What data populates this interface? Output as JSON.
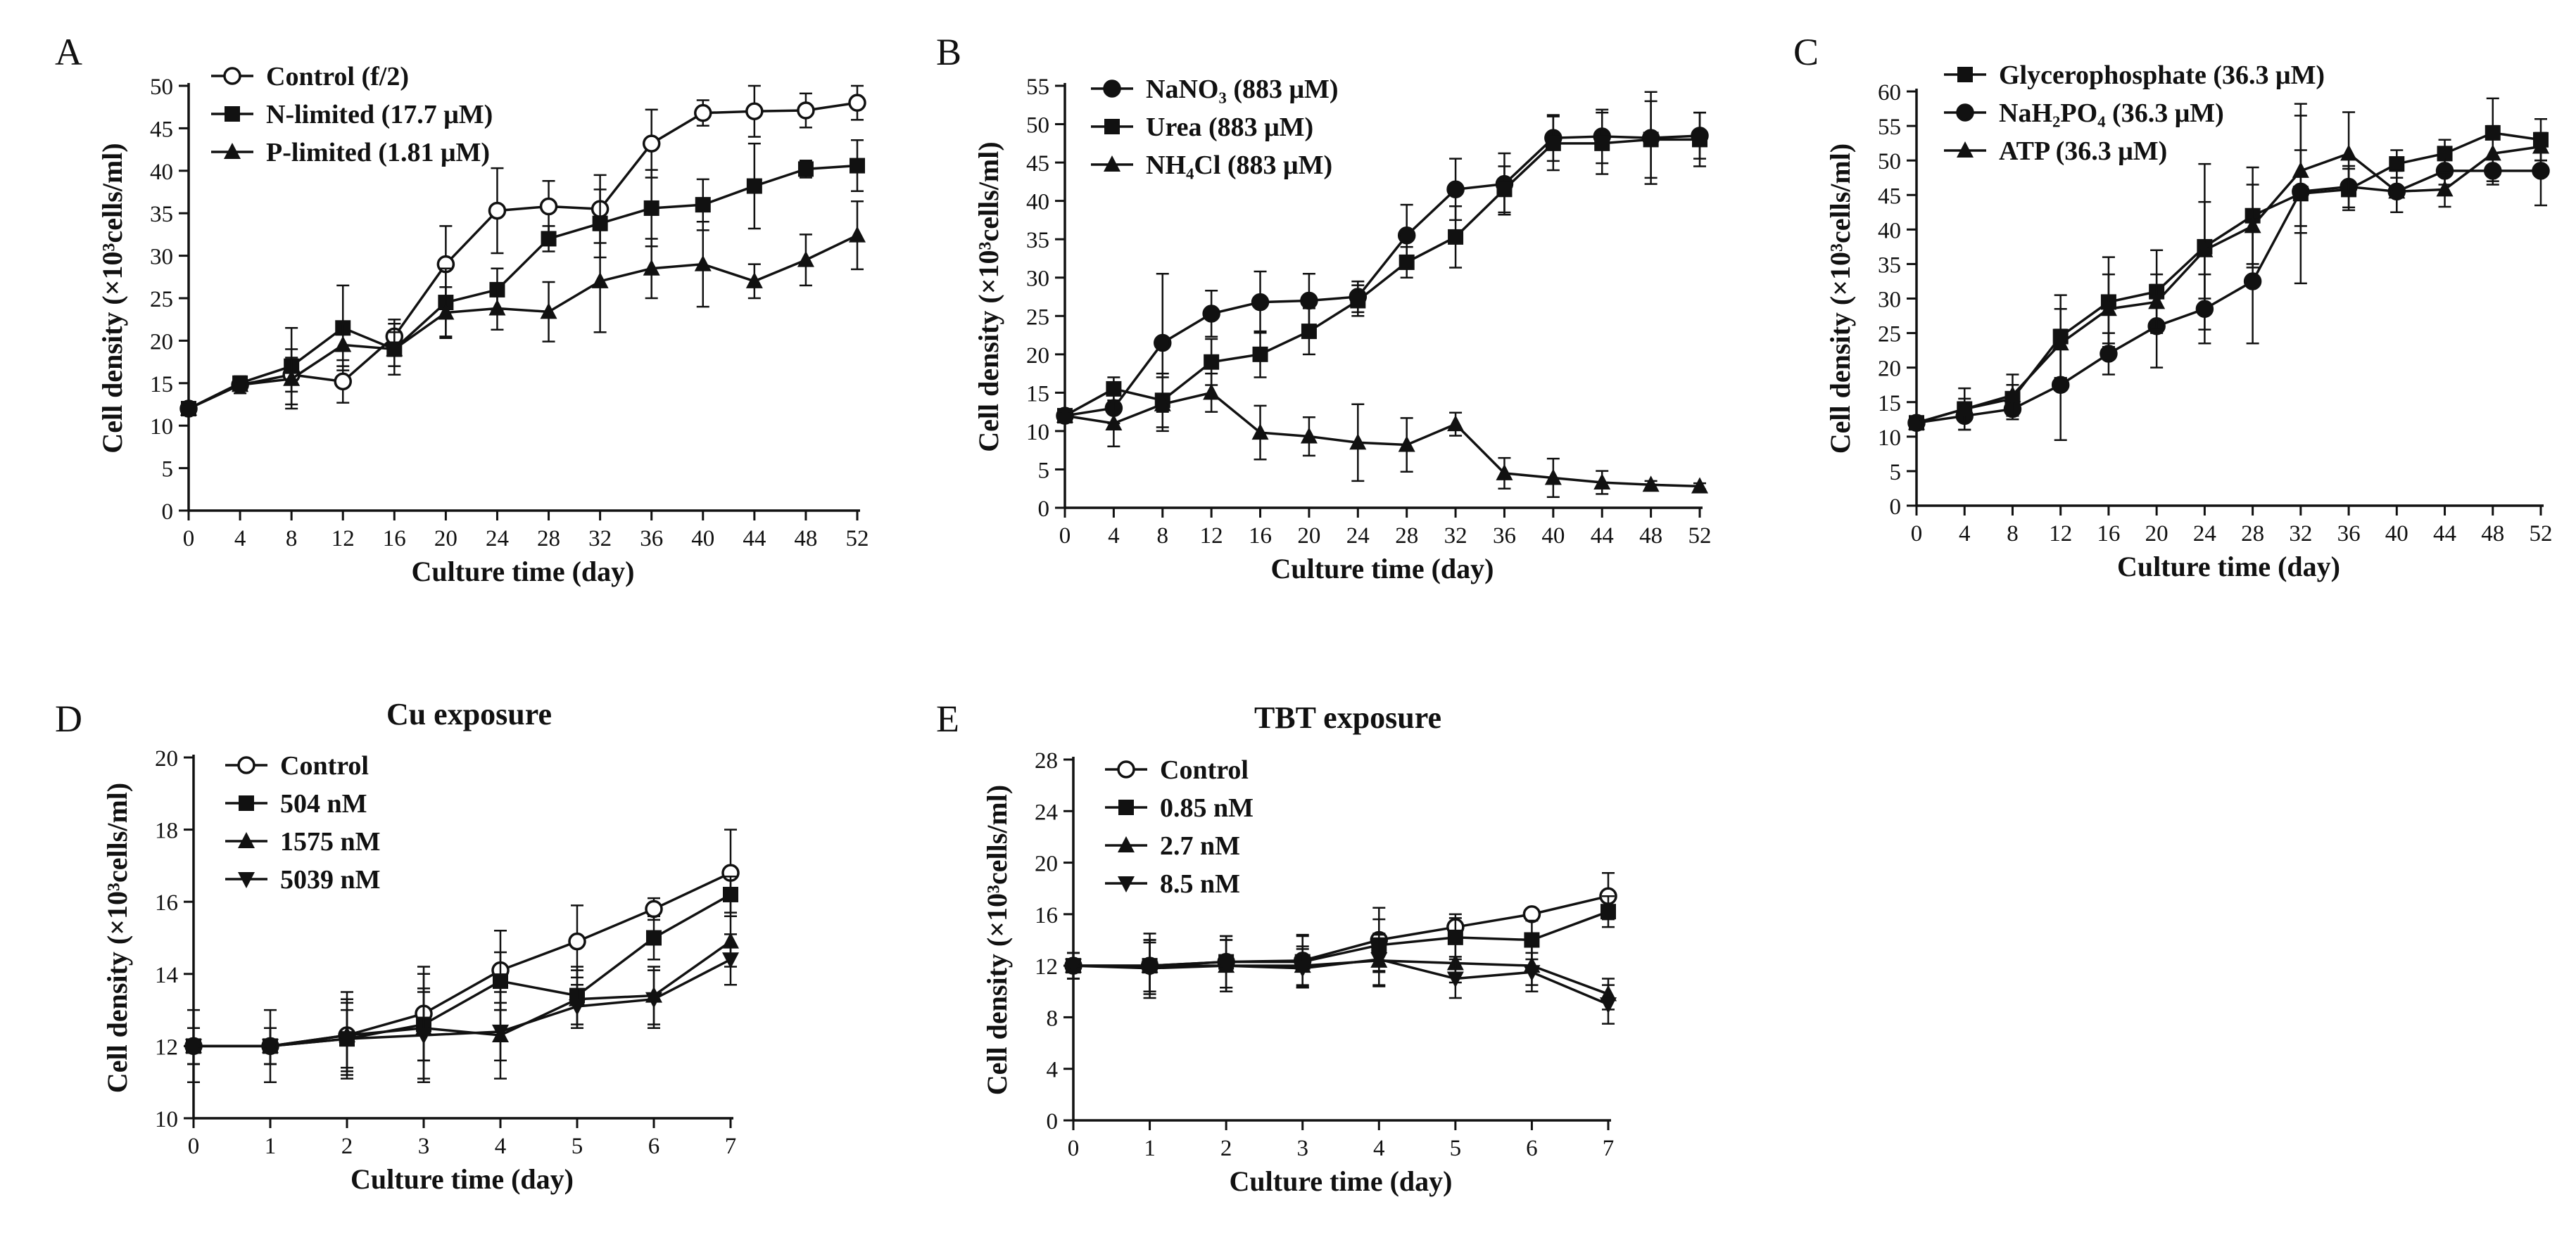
{
  "chart_data": [
    {
      "panel_label": "A",
      "type": "line",
      "title": "",
      "xlabel": "Culture time (day)",
      "ylabel": "Cell density (×10³cells/ml)",
      "xlim": [
        0,
        52
      ],
      "ylim": [
        0,
        50
      ],
      "x_ticks": [
        0,
        4,
        8,
        12,
        16,
        20,
        24,
        28,
        32,
        36,
        40,
        44,
        48,
        52
      ],
      "y_ticks": [
        0,
        5,
        10,
        15,
        20,
        25,
        30,
        35,
        40,
        45,
        50
      ],
      "x": [
        0,
        4,
        8,
        12,
        16,
        20,
        24,
        28,
        32,
        36,
        40,
        44,
        48,
        52
      ],
      "legend_position": "top-left",
      "series": [
        {
          "name": "Control (f/2)",
          "marker": "circle-open",
          "values": [
            12,
            14.8,
            16,
            15.2,
            20.5,
            29,
            35.3,
            35.8,
            35.5,
            43.2,
            46.8,
            47,
            47.1,
            48
          ],
          "errors": [
            0.5,
            1,
            2,
            2.5,
            2,
            4.5,
            5,
            3,
            4,
            4,
            1.5,
            3,
            2,
            2
          ]
        },
        {
          "name": "N-limited (17.7 μM)",
          "marker": "square",
          "values": [
            12,
            15,
            17,
            21.5,
            19,
            24.5,
            26,
            32,
            33.8,
            35.6,
            36,
            38.2,
            40.2,
            40.6
          ],
          "errors": [
            0.5,
            0.8,
            4.5,
            5,
            3,
            4,
            2.5,
            1.5,
            4,
            4.5,
            3,
            5,
            1,
            3
          ]
        },
        {
          "name": "P-limited (1.81 μM)",
          "marker": "triangle",
          "values": [
            12,
            14.8,
            15.5,
            19.5,
            19,
            23.3,
            23.8,
            23.4,
            27,
            28.5,
            29,
            27,
            29.5,
            32.4
          ],
          "errors": [
            0.5,
            1,
            3.5,
            2.5,
            2,
            3,
            2.5,
            3.5,
            6,
            3.5,
            5,
            2,
            3,
            4
          ]
        }
      ]
    },
    {
      "panel_label": "B",
      "type": "line",
      "title": "",
      "xlabel": "Culture time (day)",
      "ylabel": "Cell density (×10³cells/ml)",
      "xlim": [
        0,
        52
      ],
      "ylim": [
        0,
        55
      ],
      "x_ticks": [
        0,
        4,
        8,
        12,
        16,
        20,
        24,
        28,
        32,
        36,
        40,
        44,
        48,
        52
      ],
      "y_ticks": [
        0,
        5,
        10,
        15,
        20,
        25,
        30,
        35,
        40,
        45,
        50,
        55
      ],
      "x": [
        0,
        4,
        8,
        12,
        16,
        20,
        24,
        28,
        32,
        36,
        40,
        44,
        48,
        52
      ],
      "legend_position": "top-left",
      "series": [
        {
          "name": "NaNO₃ (883 μM)",
          "marker": "circle",
          "values": [
            12,
            13,
            21.5,
            25.3,
            26.8,
            27,
            27.5,
            35.5,
            41.5,
            42.2,
            48.2,
            48.4,
            48.2,
            48.5
          ],
          "errors": [
            0.5,
            2,
            9,
            3,
            4,
            3.5,
            2,
            4,
            4,
            4,
            3,
            3.5,
            6,
            3
          ]
        },
        {
          "name": "Urea (883 μM)",
          "marker": "square",
          "values": [
            12,
            15.5,
            14,
            19,
            20,
            23,
            27,
            32,
            35.3,
            41.5,
            47.5,
            47.5,
            48,
            48
          ],
          "errors": [
            0.5,
            1.5,
            3.5,
            3,
            3,
            3,
            2,
            2,
            4,
            3,
            3.5,
            4,
            5,
            3.5
          ]
        },
        {
          "name": "NH₄Cl (883 μM)",
          "marker": "triangle",
          "values": [
            12,
            11,
            13.5,
            15,
            9.8,
            9.3,
            8.5,
            8.2,
            10.9,
            4.5,
            3.9,
            3.3,
            3,
            2.8
          ],
          "errors": [
            0.5,
            3,
            3.5,
            2.5,
            3.5,
            2.5,
            5,
            3.5,
            1.5,
            2,
            2.5,
            1.5,
            0.5,
            0.4
          ]
        }
      ]
    },
    {
      "panel_label": "C",
      "type": "line",
      "title": "",
      "xlabel": "Culture time (day)",
      "ylabel": "Cell density (×10³cells/ml)",
      "xlim": [
        0,
        52
      ],
      "ylim": [
        0,
        60
      ],
      "x_ticks": [
        0,
        4,
        8,
        12,
        16,
        20,
        24,
        28,
        32,
        36,
        40,
        44,
        48,
        52
      ],
      "y_ticks": [
        0,
        5,
        10,
        15,
        20,
        25,
        30,
        35,
        40,
        45,
        50,
        55,
        60
      ],
      "x": [
        0,
        4,
        8,
        12,
        16,
        20,
        24,
        28,
        32,
        36,
        40,
        44,
        48,
        52
      ],
      "legend_position": "top-left",
      "series": [
        {
          "name": "Glycerophosphate (36.3 μM)",
          "marker": "square",
          "values": [
            12,
            14,
            15.5,
            24.5,
            29.5,
            31,
            37.5,
            42,
            45.2,
            45.8,
            49.5,
            51,
            54,
            53
          ],
          "errors": [
            0.5,
            1.5,
            2,
            6,
            6.5,
            6,
            12,
            7,
            13,
            3,
            2,
            2,
            5,
            3
          ]
        },
        {
          "name": "NaH₂PO₄ (36.3 μM)",
          "marker": "circle",
          "values": [
            12,
            13,
            14,
            17.5,
            22,
            26,
            28.5,
            32.5,
            45.5,
            46.2,
            45.5,
            48.5,
            48.5,
            48.5
          ],
          "errors": [
            0.5,
            2,
            1.5,
            8,
            3,
            6,
            5,
            9,
            6,
            3,
            3,
            2,
            2,
            5
          ]
        },
        {
          "name": "ATP (36.3 μM)",
          "marker": "triangle",
          "values": [
            12,
            14,
            16,
            23.5,
            28.5,
            29.5,
            37,
            40.5,
            48.5,
            51,
            45.5,
            45.8,
            51,
            52
          ],
          "errors": [
            0.5,
            3,
            3,
            5,
            5,
            4,
            7,
            6,
            8,
            6,
            3,
            2.5,
            4,
            2
          ]
        }
      ]
    },
    {
      "panel_label": "D",
      "type": "line",
      "title": "Cu exposure",
      "xlabel": "Culture time (day)",
      "ylabel": "Cell density (×10³cells/ml)",
      "xlim": [
        0,
        7
      ],
      "ylim": [
        10,
        20
      ],
      "x_ticks": [
        0,
        1,
        2,
        3,
        4,
        5,
        6,
        7
      ],
      "y_ticks": [
        10,
        12,
        14,
        16,
        18,
        20
      ],
      "x": [
        0,
        1,
        2,
        3,
        4,
        5,
        6,
        7
      ],
      "legend_position": "top-left",
      "series": [
        {
          "name": "Control",
          "marker": "circle-open",
          "values": [
            12,
            12,
            12.3,
            12.9,
            14.1,
            14.9,
            15.8,
            16.8
          ],
          "errors": [
            1,
            1,
            1,
            1.3,
            1.1,
            1,
            0.3,
            1.2
          ]
        },
        {
          "name": "504 nM",
          "marker": "square",
          "values": [
            12,
            12,
            12.2,
            12.6,
            13.8,
            13.4,
            15,
            16.2
          ],
          "errors": [
            0.5,
            0.5,
            1,
            1,
            0.8,
            0.8,
            0.6,
            0.5
          ]
        },
        {
          "name": "1575 nM",
          "marker": "triangle",
          "values": [
            12,
            12,
            12.3,
            12.5,
            12.3,
            13.3,
            13.4,
            14.9
          ],
          "errors": [
            0.5,
            0.5,
            1.2,
            1.5,
            1.2,
            0.8,
            0.8,
            0.7
          ]
        },
        {
          "name": "5039 nM",
          "marker": "triangle-down",
          "values": [
            12,
            12,
            12.2,
            12.3,
            12.4,
            13.1,
            13.3,
            14.4
          ],
          "errors": [
            0.5,
            0.5,
            0.8,
            1.2,
            0.8,
            0.6,
            0.8,
            0.7
          ]
        }
      ]
    },
    {
      "panel_label": "E",
      "type": "line",
      "title": "TBT exposure",
      "xlabel": "Culture time (day)",
      "ylabel": "Cell density (×10³cells/ml)",
      "xlim": [
        0,
        7
      ],
      "ylim": [
        0,
        28
      ],
      "x_ticks": [
        0,
        1,
        2,
        3,
        4,
        5,
        6,
        7
      ],
      "y_ticks": [
        0,
        4,
        8,
        12,
        16,
        20,
        24,
        28
      ],
      "x": [
        0,
        1,
        2,
        3,
        4,
        5,
        6,
        7
      ],
      "legend_position": "top-left",
      "series": [
        {
          "name": "Control",
          "marker": "circle-open",
          "values": [
            12,
            12,
            12.3,
            12.4,
            14,
            15,
            16,
            17.4
          ],
          "errors": [
            1,
            2.5,
            2,
            2,
            2.5,
            1,
            0.3,
            1.8
          ]
        },
        {
          "name": "0.85 nM",
          "marker": "square",
          "values": [
            12,
            12,
            12.3,
            12.3,
            13.6,
            14.2,
            14,
            16.2
          ],
          "errors": [
            1,
            2,
            2,
            2,
            2,
            1.5,
            1.5,
            1.2
          ]
        },
        {
          "name": "2.7 nM",
          "marker": "triangle",
          "values": [
            12,
            12,
            12,
            12,
            12.4,
            12.2,
            12,
            9.8
          ],
          "errors": [
            1,
            2,
            2,
            1.5,
            2,
            1.5,
            1.5,
            1.2
          ]
        },
        {
          "name": "8.5 nM",
          "marker": "triangle-down",
          "values": [
            12,
            11.8,
            12,
            11.8,
            12.5,
            11,
            11.5,
            9
          ],
          "errors": [
            1,
            2,
            2,
            1.5,
            2,
            1.5,
            1.5,
            1.5
          ]
        }
      ]
    }
  ]
}
